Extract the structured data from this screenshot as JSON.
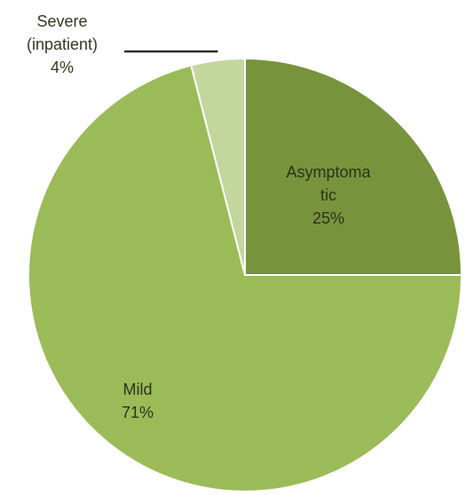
{
  "chart_data": {
    "type": "pie",
    "slices": [
      {
        "name": "Asymptomatic",
        "label_lines": [
          "Asymptoma",
          "tic"
        ],
        "percent_label": "25%",
        "value": 25,
        "color": "#77933c"
      },
      {
        "name": "Mild",
        "label_lines": [
          "Mild"
        ],
        "percent_label": "71%",
        "value": 71,
        "color": "#9bbb59"
      },
      {
        "name": "Severe (inpatient)",
        "label_lines": [
          "Severe",
          "(inpatient)"
        ],
        "percent_label": "4%",
        "value": 4,
        "color": "#c3d69b"
      }
    ],
    "start_angle_degrees": 0,
    "direction": "clockwise",
    "legend": "none"
  }
}
